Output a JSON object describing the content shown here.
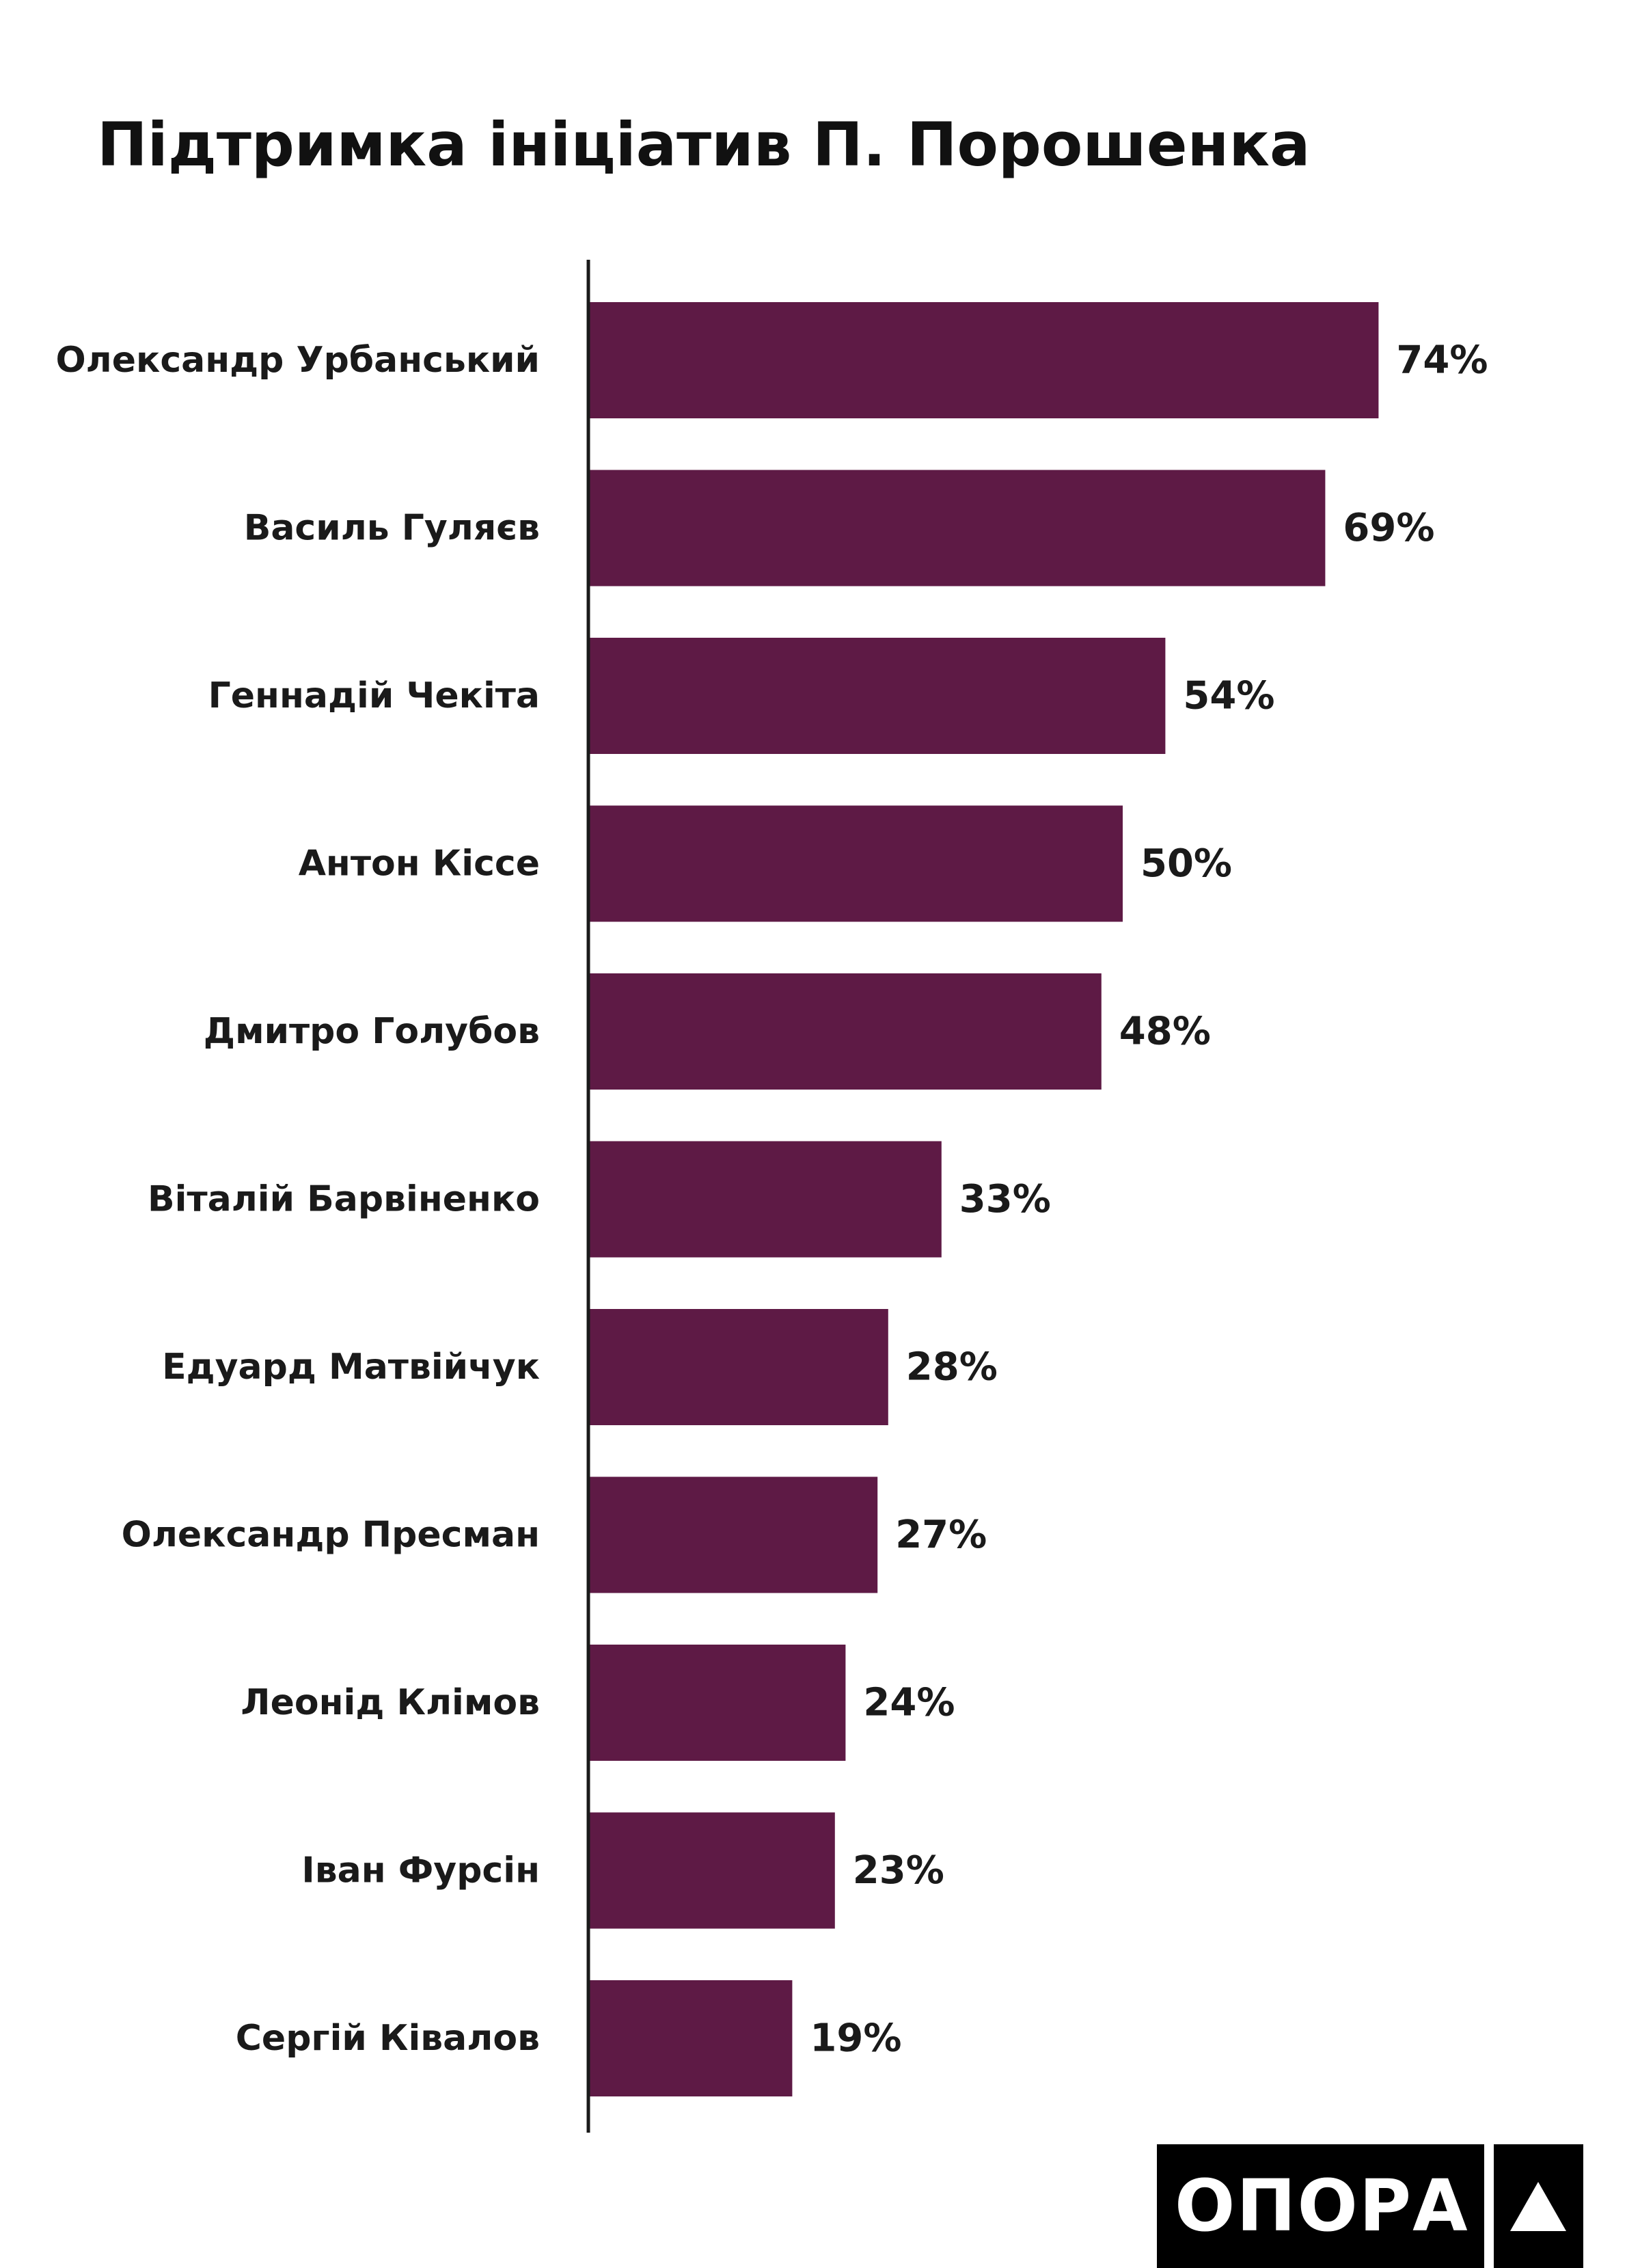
{
  "chart_data": {
    "type": "bar",
    "orientation": "horizontal",
    "title": "Підтримка ініціатив П. Порошенка",
    "categories": [
      "Олександр Урбанський",
      "Василь Гуляєв",
      "Геннадій Чекіта",
      "Антон Кіссе",
      "Дмитро Голубов",
      "Віталій Барвіненко",
      "Едуард Матвійчук",
      "Олександр Пресман",
      "Леонід Клімов",
      "Іван Фурсін",
      "Сергій Ківалов"
    ],
    "values": [
      74,
      69,
      54,
      50,
      48,
      33,
      28,
      27,
      24,
      23,
      19
    ],
    "value_labels": [
      "74%",
      "69%",
      "54%",
      "50%",
      "48%",
      "33%",
      "28%",
      "27%",
      "24%",
      "23%",
      "19%"
    ],
    "unit": "%",
    "xlim": [
      0,
      100
    ],
    "grid": false,
    "legend": "none",
    "bar_color": "#5e1a45"
  },
  "logo": {
    "text": "ОПОРА"
  }
}
